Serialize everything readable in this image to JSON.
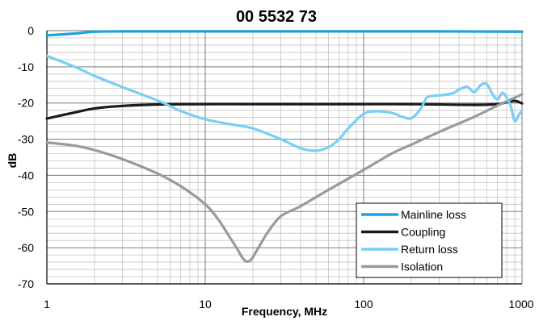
{
  "chart_data": {
    "type": "line",
    "title": "00 5532 73",
    "xlabel": "Frequency, MHz",
    "ylabel": "dB",
    "x_scale": "log",
    "xlim": [
      1,
      1000
    ],
    "ylim": [
      -70,
      0
    ],
    "x_ticks": [
      1,
      10,
      100,
      1000
    ],
    "x_tick_labels": [
      "1",
      "10",
      "100",
      "1000"
    ],
    "y_ticks": [
      0,
      -10,
      -20,
      -30,
      -40,
      -50,
      -60,
      -70
    ],
    "y_tick_labels": [
      "0",
      "-10",
      "-20",
      "-30",
      "-40",
      "-50",
      "-60",
      "-70"
    ],
    "grid": true,
    "legend_position": "bottom-right",
    "series": [
      {
        "name": "Mainline loss",
        "color": "#1aa3dc",
        "x": [
          1,
          1.5,
          2,
          3,
          5,
          10,
          30,
          100,
          300,
          1000
        ],
        "y": [
          -1.3,
          -0.8,
          -0.3,
          -0.2,
          -0.2,
          -0.2,
          -0.2,
          -0.2,
          -0.2,
          -0.3
        ]
      },
      {
        "name": "Coupling",
        "color": "#1a1a1a",
        "x": [
          1,
          1.5,
          2,
          3,
          5,
          10,
          20,
          50,
          100,
          200,
          300,
          500,
          700,
          800,
          900,
          1000
        ],
        "y": [
          -24.3,
          -22.6,
          -21.5,
          -20.8,
          -20.4,
          -20.3,
          -20.3,
          -20.3,
          -20.3,
          -20.3,
          -20.4,
          -20.5,
          -20.3,
          -19.8,
          -19.4,
          -20.1
        ]
      },
      {
        "name": "Return loss",
        "color": "#78cff5",
        "x": [
          1,
          1.5,
          2,
          3,
          5,
          7,
          10,
          15,
          20,
          30,
          40,
          50,
          60,
          70,
          80,
          100,
          120,
          150,
          170,
          200,
          230,
          250,
          280,
          320,
          370,
          400,
          450,
          500,
          550,
          600,
          650,
          700,
          750,
          800,
          850,
          900,
          950,
          1000
        ],
        "y": [
          -7,
          -10,
          -12.5,
          -15.6,
          -19.3,
          -22.2,
          -24.5,
          -26,
          -27,
          -30,
          -32.5,
          -33.2,
          -32.2,
          -30,
          -27,
          -23,
          -22.3,
          -22.7,
          -23.6,
          -24.2,
          -21.5,
          -18.5,
          -18,
          -17.8,
          -17.2,
          -16.3,
          -15.5,
          -17,
          -15,
          -14.8,
          -17.5,
          -19,
          -17.2,
          -18.5,
          -21,
          -25,
          -23.5,
          -22
        ]
      },
      {
        "name": "Isolation",
        "color": "#9a9a9a",
        "x": [
          1,
          1.5,
          2,
          3,
          5,
          7,
          10,
          12,
          14,
          16,
          17,
          18,
          19,
          20,
          22,
          25,
          30,
          40,
          60,
          100,
          150,
          200,
          300,
          500,
          700,
          1000
        ],
        "y": [
          -30.9,
          -31.8,
          -33,
          -35.5,
          -39.5,
          -43,
          -48,
          -52,
          -56.5,
          -60.5,
          -62.5,
          -63.7,
          -63.7,
          -62.6,
          -59.5,
          -55.5,
          -51.3,
          -48.5,
          -44,
          -38.5,
          -34,
          -31.5,
          -28,
          -23.8,
          -20.7,
          -17.6
        ]
      }
    ]
  }
}
